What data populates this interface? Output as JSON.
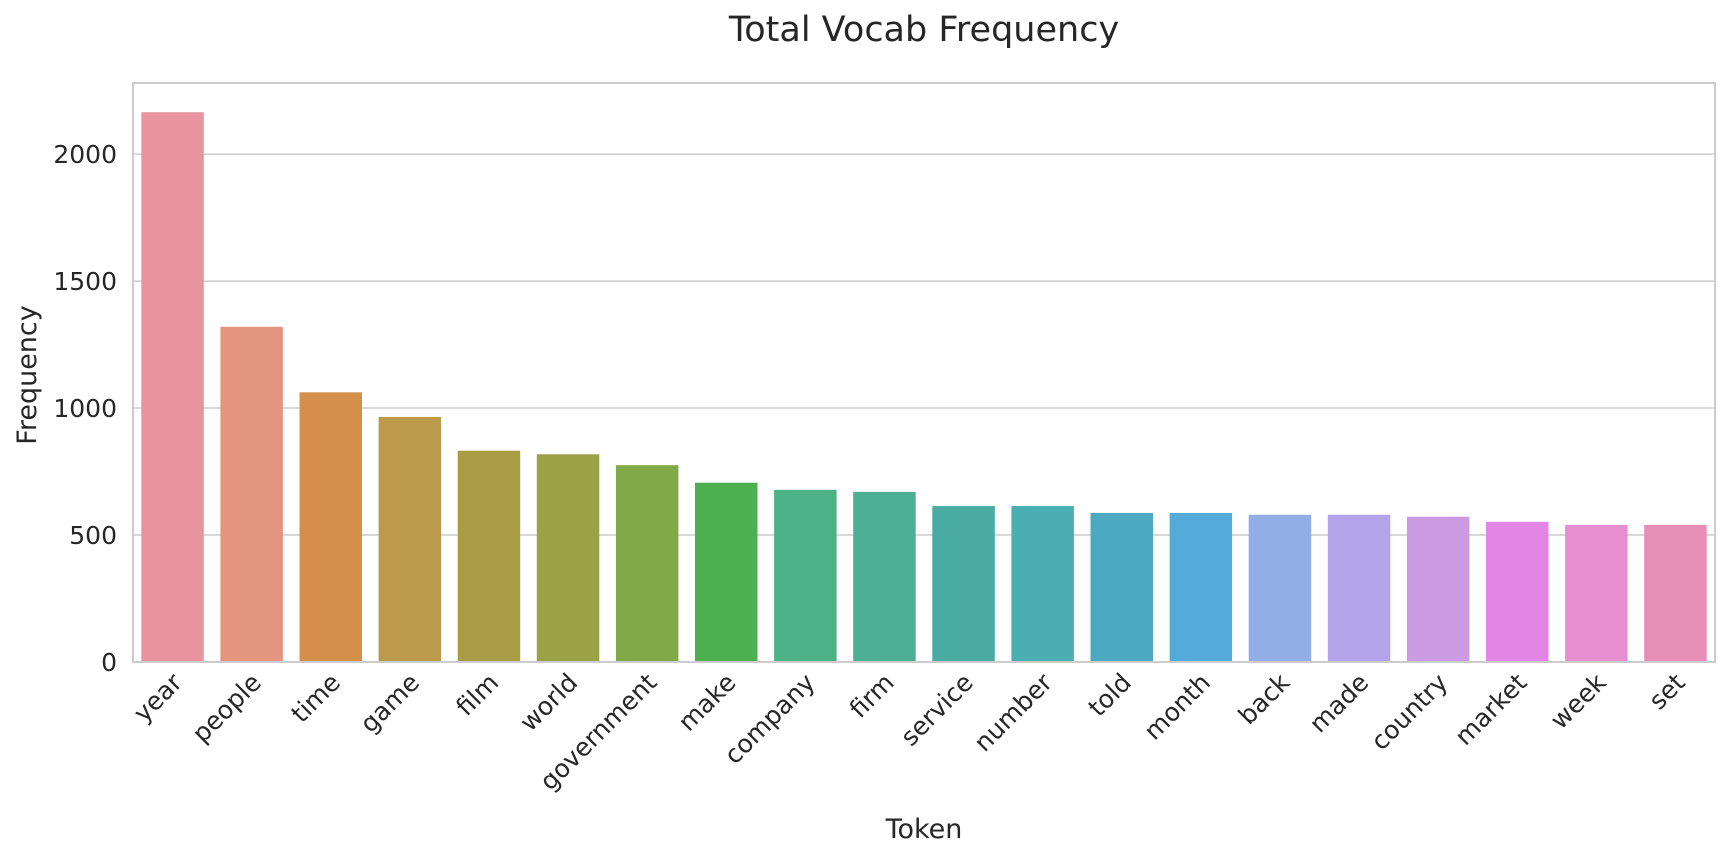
{
  "chart_data": {
    "type": "bar",
    "title": "Total Vocab Frequency",
    "xlabel": "Token",
    "ylabel": "Frequency",
    "ylim": [
      0,
      2280
    ],
    "yticks": [
      0,
      500,
      1000,
      1500,
      2000
    ],
    "grid": "horizontal",
    "categories": [
      "year",
      "people",
      "time",
      "game",
      "film",
      "world",
      "government",
      "make",
      "company",
      "firm",
      "service",
      "number",
      "told",
      "month",
      "back",
      "made",
      "country",
      "market",
      "week",
      "set"
    ],
    "values": [
      2165,
      1320,
      1062,
      965,
      832,
      818,
      775,
      706,
      678,
      670,
      614,
      614,
      587,
      587,
      580,
      580,
      572,
      552,
      540,
      540
    ],
    "colors": [
      "#e8939f",
      "#e4957e",
      "#d48f4b",
      "#bb9a4b",
      "#a89c45",
      "#9aa245",
      "#80a947",
      "#4caf50",
      "#4db186",
      "#4caf93",
      "#4aaba3",
      "#4aaeb3",
      "#4ba9c1",
      "#54abd9",
      "#91aee6",
      "#b1a4ea",
      "#cc99e3",
      "#e285e4",
      "#e68ecf",
      "#e68eb6"
    ]
  }
}
